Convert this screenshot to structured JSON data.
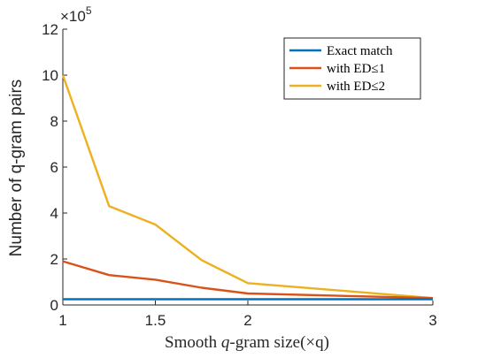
{
  "chart_data": {
    "type": "line",
    "xlabel_parts": [
      "Smooth ",
      "q",
      "-gram size(×q)"
    ],
    "ylabel": "Number of q-gram pairs",
    "y_multiplier": {
      "base": "×10",
      "exponent": "5"
    },
    "xlim": [
      1,
      3
    ],
    "ylim": [
      0,
      12
    ],
    "x_ticks": [
      1,
      1.5,
      2,
      3
    ],
    "x_tick_labels": [
      "1",
      "1.5",
      "2",
      "3"
    ],
    "y_ticks": [
      0,
      2,
      4,
      6,
      8,
      10,
      12
    ],
    "y_tick_labels": [
      "0",
      "2",
      "4",
      "6",
      "8",
      "10",
      "12"
    ],
    "legend_position": "top-right",
    "grid": false,
    "series": [
      {
        "name": "Exact match",
        "color": "#0072BD",
        "x": [
          1,
          1.25,
          1.5,
          1.75,
          2,
          3
        ],
        "y": [
          0.25,
          0.25,
          0.25,
          0.25,
          0.25,
          0.25
        ]
      },
      {
        "name": "with ED≤1",
        "color": "#D95319",
        "x": [
          1,
          1.25,
          1.5,
          1.75,
          2,
          3
        ],
        "y": [
          1.9,
          1.3,
          1.1,
          0.75,
          0.5,
          0.3
        ]
      },
      {
        "name": "with ED≤2",
        "color": "#EDB120",
        "x": [
          1,
          1.25,
          1.5,
          1.75,
          2,
          3
        ],
        "y": [
          10.0,
          4.3,
          3.5,
          1.95,
          0.95,
          0.3
        ]
      }
    ]
  }
}
